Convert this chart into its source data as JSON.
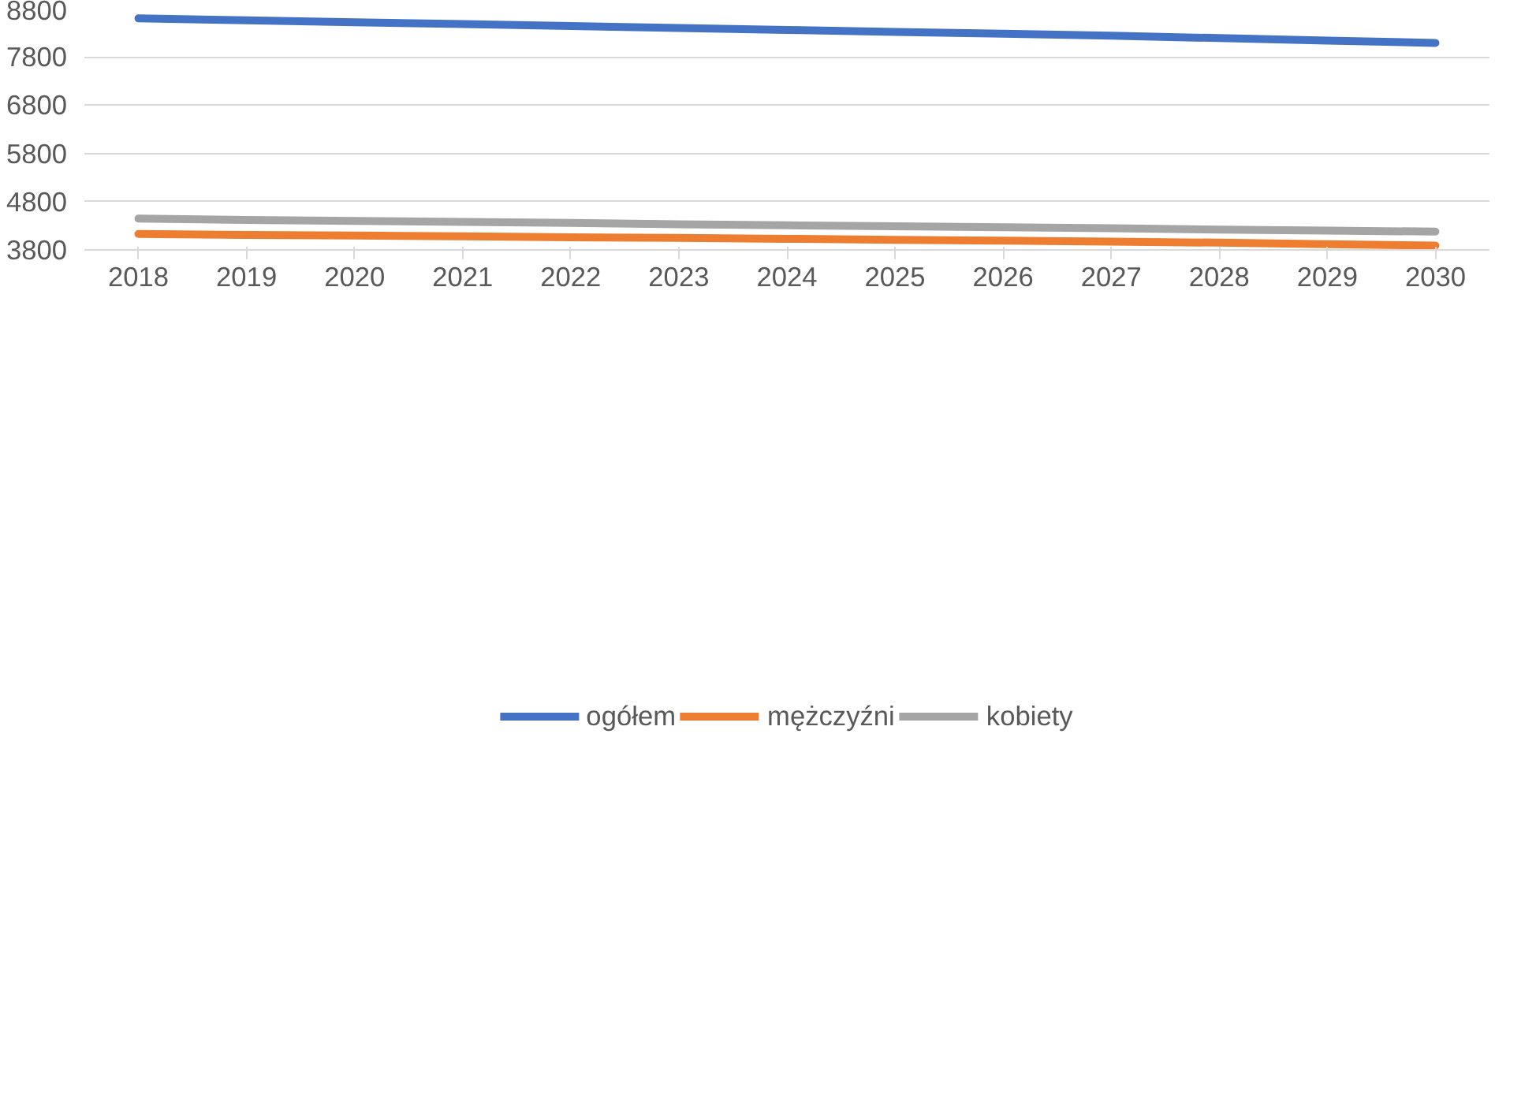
{
  "chart_data": {
    "type": "line",
    "categories": [
      "2018",
      "2019",
      "2020",
      "2021",
      "2022",
      "2023",
      "2024",
      "2025",
      "2026",
      "2027",
      "2028",
      "2029",
      "2030"
    ],
    "series": [
      {
        "name": "ogółem",
        "color": "#4472c4",
        "values": [
          8600,
          8560,
          8520,
          8480,
          8440,
          8400,
          8360,
          8320,
          8280,
          8240,
          8190,
          8140,
          8090
        ]
      },
      {
        "name": "mężczyźni",
        "color": "#ed7d31",
        "values": [
          4130,
          4110,
          4100,
          4080,
          4060,
          4050,
          4030,
          4010,
          3990,
          3970,
          3950,
          3920,
          3890
        ]
      },
      {
        "name": "kobiety",
        "color": "#a5a5a5",
        "values": [
          4450,
          4420,
          4400,
          4380,
          4360,
          4330,
          4310,
          4290,
          4270,
          4250,
          4220,
          4200,
          4180
        ]
      }
    ],
    "ylim": [
      3800,
      8800
    ],
    "yticks": [
      3800,
      4800,
      5800,
      6800,
      7800,
      8800
    ],
    "grid": "y",
    "legend": "bottom",
    "marker": "none",
    "line_style": "solid"
  }
}
